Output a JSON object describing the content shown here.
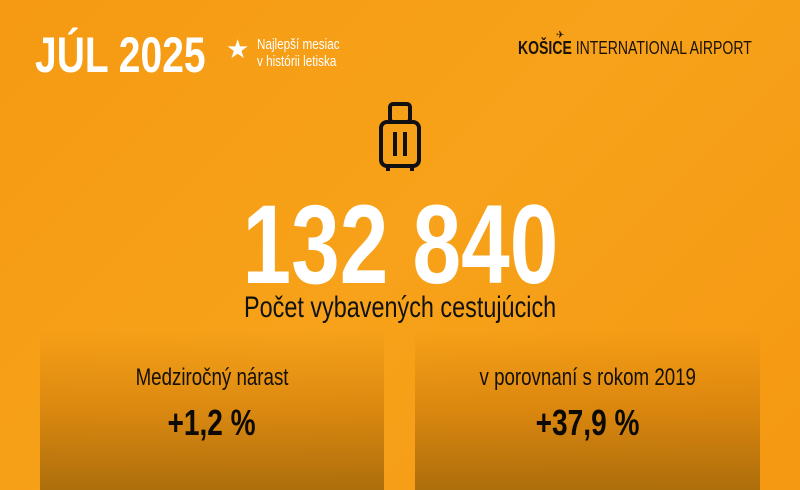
{
  "header": {
    "title": "JÚL 2025",
    "star_icon": "star-icon",
    "tagline_line1": "Najlepší mesiac",
    "tagline_line2": "v histórii letiska"
  },
  "logo": {
    "brand": "KOŠICE",
    "rest": " INTERNATIONAL AIRPORT"
  },
  "main": {
    "icon": "suitcase-icon",
    "value": "132 840",
    "label": "Počet vybavených cestujúcich"
  },
  "stats": [
    {
      "label": "Medziročný nárast",
      "value": "+1,2 %"
    },
    {
      "label": "v porovnaní s rokom 2019",
      "value": "+37,9 %"
    }
  ],
  "colors": {
    "background": "#f59e15",
    "text_light": "#ffffff",
    "text_dark": "#111111"
  }
}
